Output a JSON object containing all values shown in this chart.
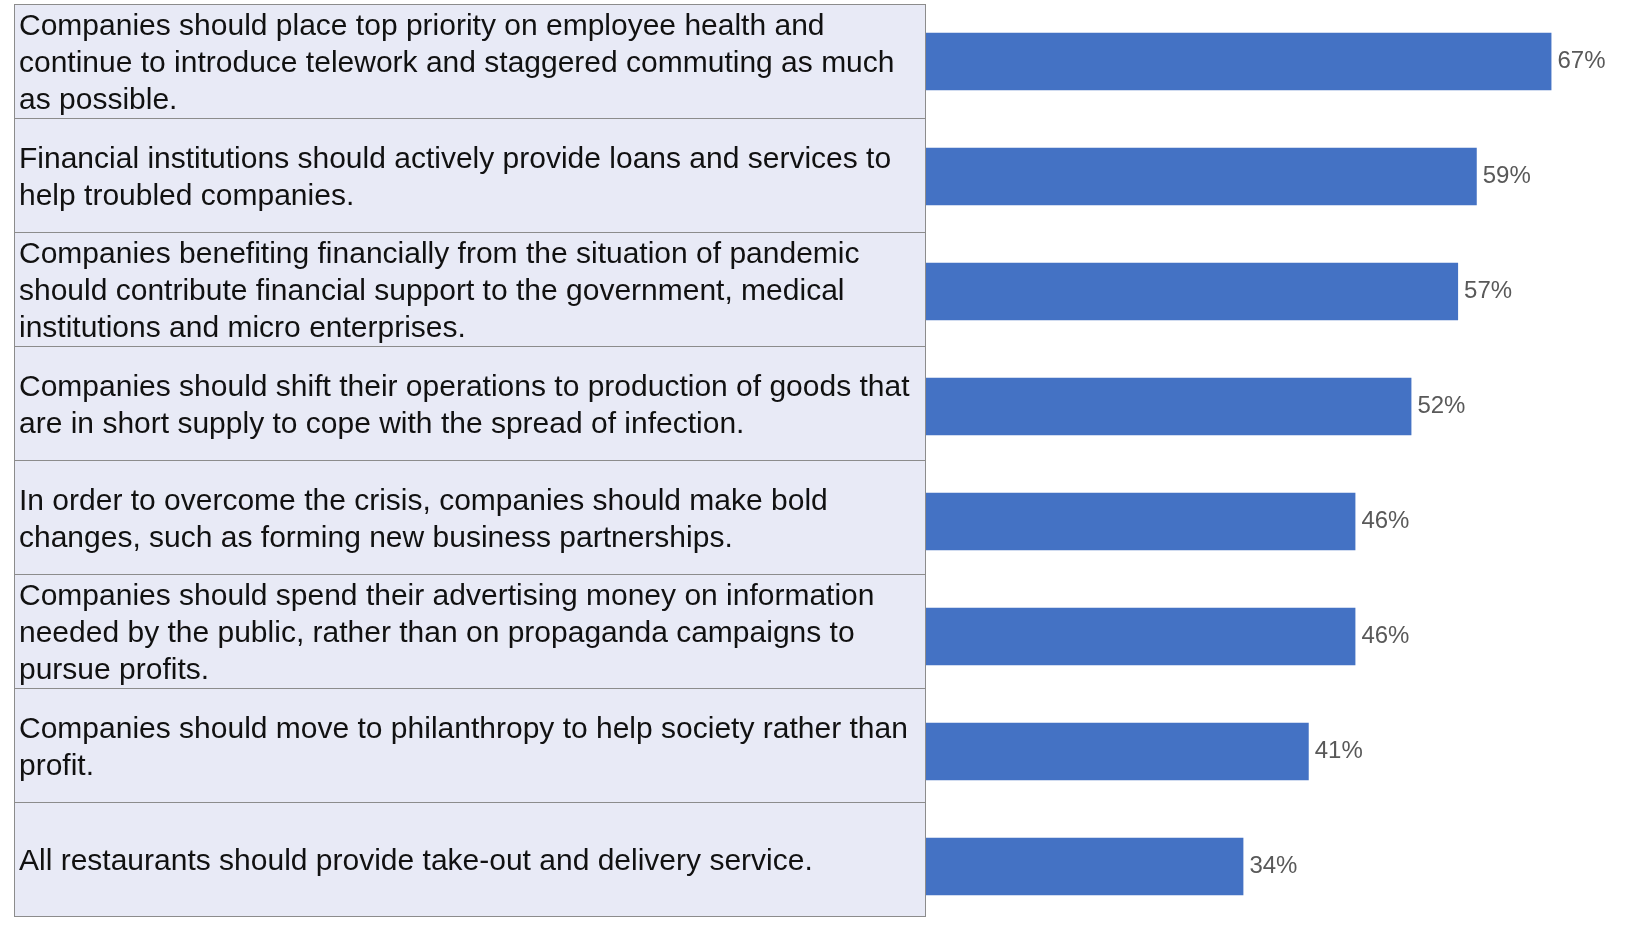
{
  "chart_data": {
    "type": "bar",
    "orientation": "horizontal",
    "categories": [
      "Companies should place top priority on employee health and continue to introduce telework and staggered commuting as much as possible.",
      "Financial institutions should actively provide loans and services to help troubled companies.",
      "Companies benefiting financially from the situation of pandemic should contribute financial support to the government, medical institutions and micro enterprises.",
      "Companies should shift their operations to production of goods that are in short supply to cope with the spread of infection.",
      "In order to overcome the crisis, companies should make bold changes, such as forming new business partnerships.",
      "Companies should spend their advertising money on information needed by the public, rather than on propaganda campaigns to pursue profits.",
      "Companies should move to philanthropy to help society rather than profit.",
      "All restaurants should provide take-out and delivery service."
    ],
    "values": [
      67,
      59,
      57,
      52,
      46,
      46,
      41,
      34
    ],
    "value_labels": [
      "67%",
      "59%",
      "57%",
      "52%",
      "46%",
      "46%",
      "41%",
      "34%"
    ],
    "color": "#4472c4"
  }
}
